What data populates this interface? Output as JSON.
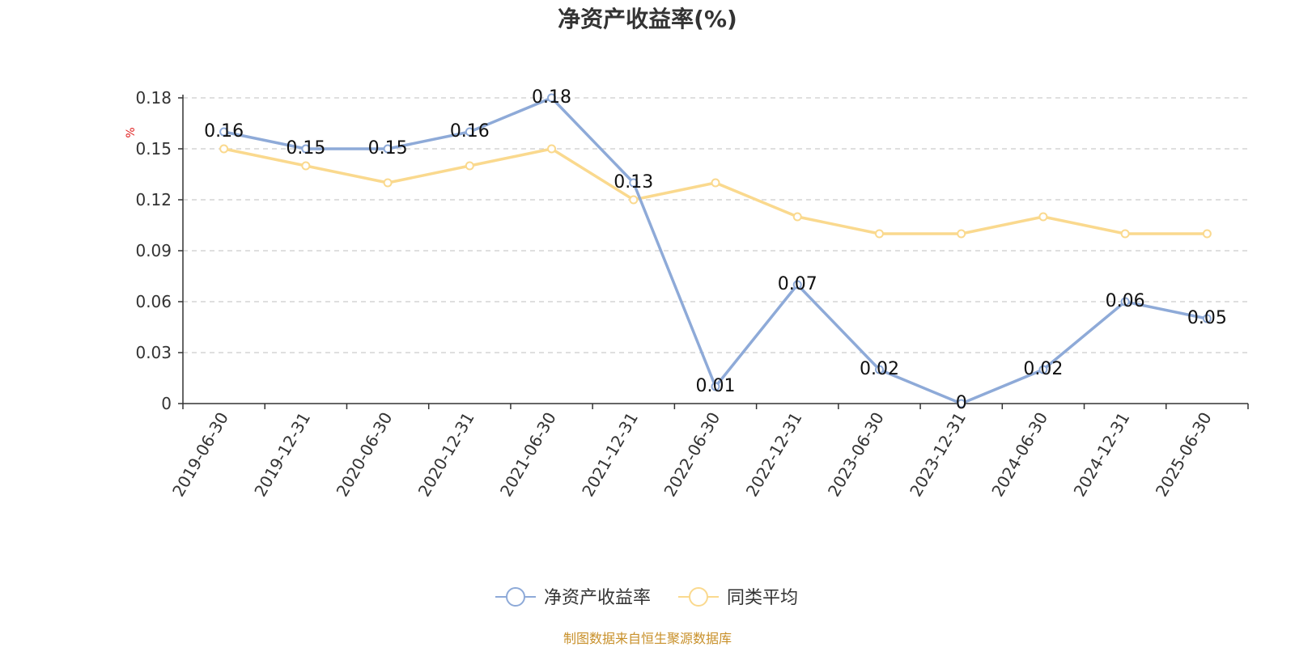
{
  "chart_data": {
    "type": "line",
    "title": "净资产收益率(%)",
    "ylabel": "%",
    "xlabel": "",
    "categories": [
      "2019-06-30",
      "2019-12-31",
      "2020-06-30",
      "2020-12-31",
      "2021-06-30",
      "2021-12-31",
      "2022-06-30",
      "2022-12-31",
      "2023-06-30",
      "2023-12-31",
      "2024-06-30",
      "2024-12-31",
      "2025-06-30"
    ],
    "series": [
      {
        "name": "净资产收益率",
        "color": "#8eaad8",
        "values": [
          0.16,
          0.15,
          0.15,
          0.16,
          0.18,
          0.13,
          0.01,
          0.07,
          0.02,
          0,
          0.02,
          0.06,
          0.05
        ],
        "labels": [
          "0.16",
          "0.15",
          "0.15",
          "0.16",
          "0.18",
          "0.13",
          "0.01",
          "0.07",
          "0.02",
          "0",
          "0.02",
          "0.06",
          "0.05"
        ]
      },
      {
        "name": "同类平均",
        "color": "#fad98e",
        "values": [
          0.15,
          0.14,
          0.13,
          0.14,
          0.15,
          0.12,
          0.13,
          0.11,
          0.1,
          0.1,
          0.11,
          0.1,
          0.1
        ]
      }
    ],
    "yticks": [
      0,
      0.03,
      0.06,
      0.09,
      0.12,
      0.15,
      0.18
    ],
    "ytick_labels": [
      "0",
      "0.03",
      "0.06",
      "0.09",
      "0.12",
      "0.15",
      "0.18"
    ],
    "ylim": [
      0,
      0.18
    ],
    "grid": true,
    "legend_position": "bottom-center"
  },
  "source_note": "制图数据来自恒生聚源数据库"
}
